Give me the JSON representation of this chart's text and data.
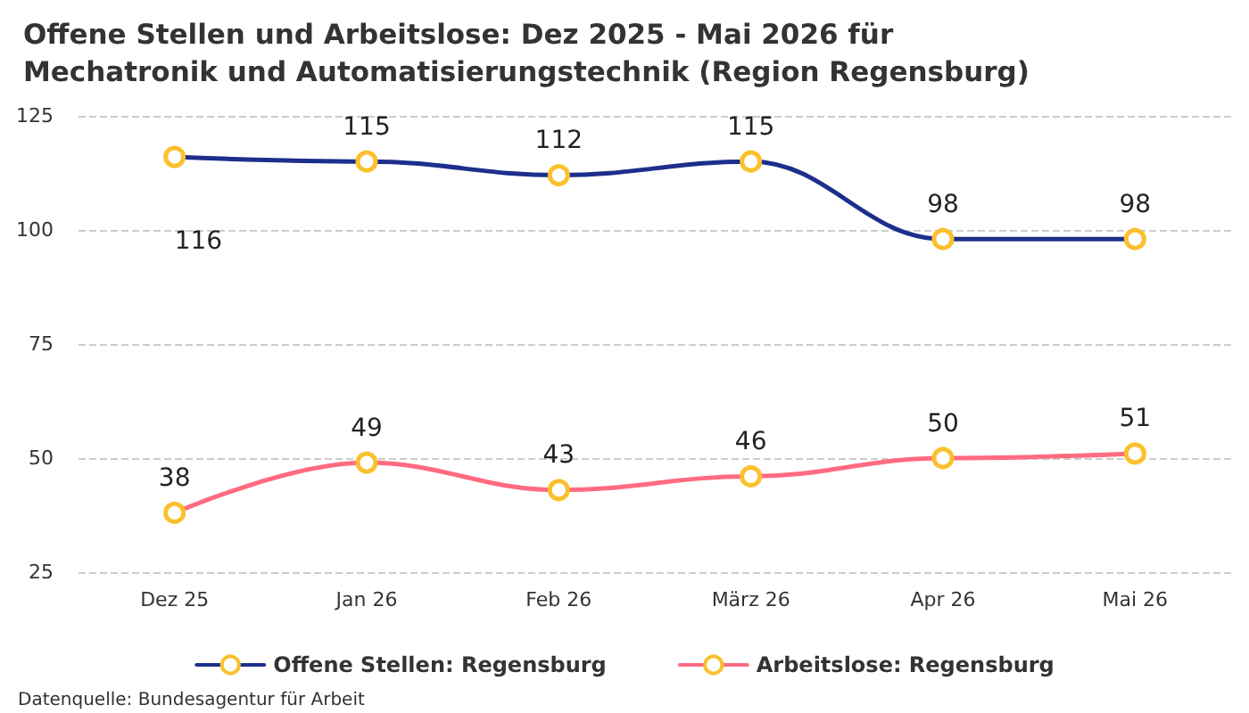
{
  "chart_data": {
    "type": "line",
    "title": "Offene Stellen und Arbeitslose: Dez 2025 - Mai 2026 für Mechatronik und Automatisierungstechnik (Region Regensburg)",
    "categories": [
      "Dez 25",
      "Jan 26",
      "Feb 26",
      "März 26",
      "Apr 26",
      "Mai 26"
    ],
    "series": [
      {
        "name": "Offene Stellen: Regensburg",
        "color": "#1d2f8c",
        "values": [
          116,
          115,
          112,
          115,
          98,
          98
        ]
      },
      {
        "name": "Arbeitslose: Regensburg",
        "color": "#ff6b81",
        "values": [
          38,
          49,
          43,
          46,
          50,
          51
        ]
      }
    ],
    "ylim": [
      25,
      125
    ],
    "yticks": [
      25,
      50,
      75,
      100,
      125
    ],
    "grid": "y",
    "legend": "bottom",
    "marker": "circle",
    "line_style": "solid",
    "data_labels": true,
    "annotations": [
      "Datenquelle: Bundesagentur für Arbeit"
    ]
  }
}
